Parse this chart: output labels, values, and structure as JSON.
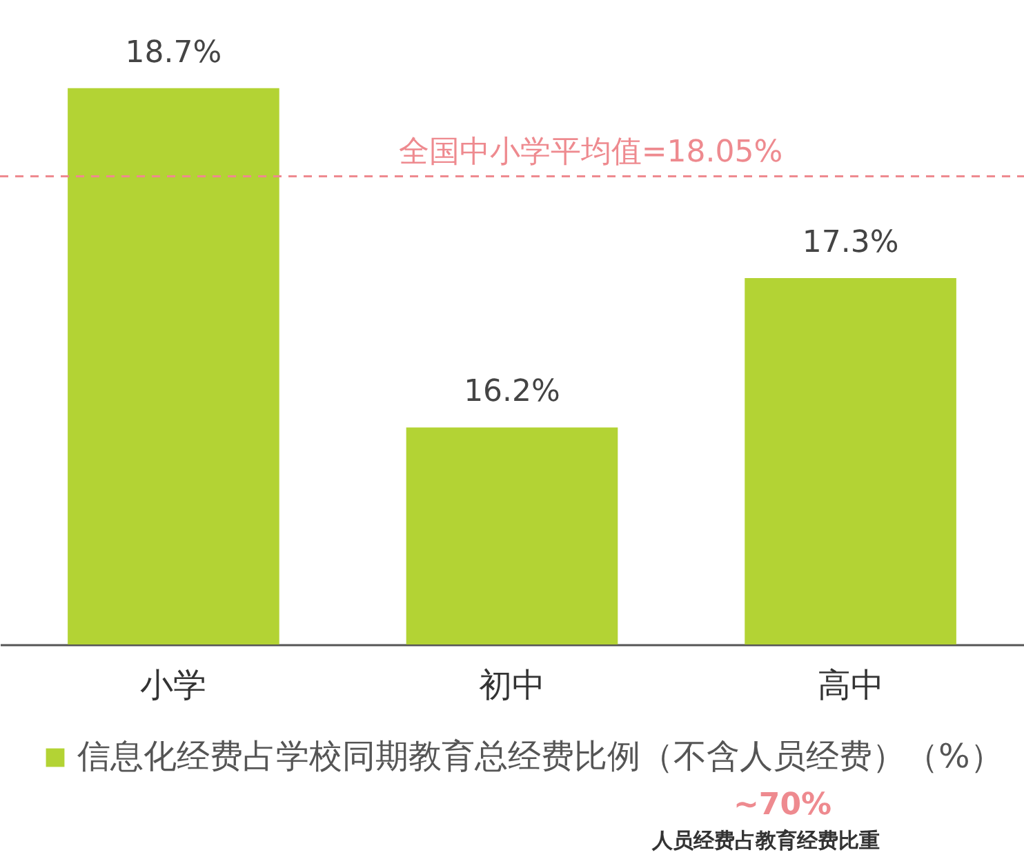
{
  "chart_data": {
    "type": "bar",
    "categories": [
      "小学",
      "初中",
      "高中"
    ],
    "series": [
      {
        "name": "信息化经费占学校同期教育总经费比例（不含人员经费）（%）",
        "color": "#b3d334",
        "values": [
          18.7,
          16.2,
          17.3
        ],
        "value_labels": [
          "18.7%",
          "16.2%",
          "17.3%"
        ]
      }
    ],
    "ylim": [
      14.6,
      19.35
    ],
    "ref_lines": [
      {
        "axis": "y",
        "value": 18.05,
        "label": "全国中小学平均值=18.05%",
        "color": "#ee8a8f",
        "line_style": "dashed"
      }
    ],
    "annotations": [
      "~70%",
      "人员经费占教育经费比重"
    ],
    "legend": "bottom",
    "grid": false
  }
}
